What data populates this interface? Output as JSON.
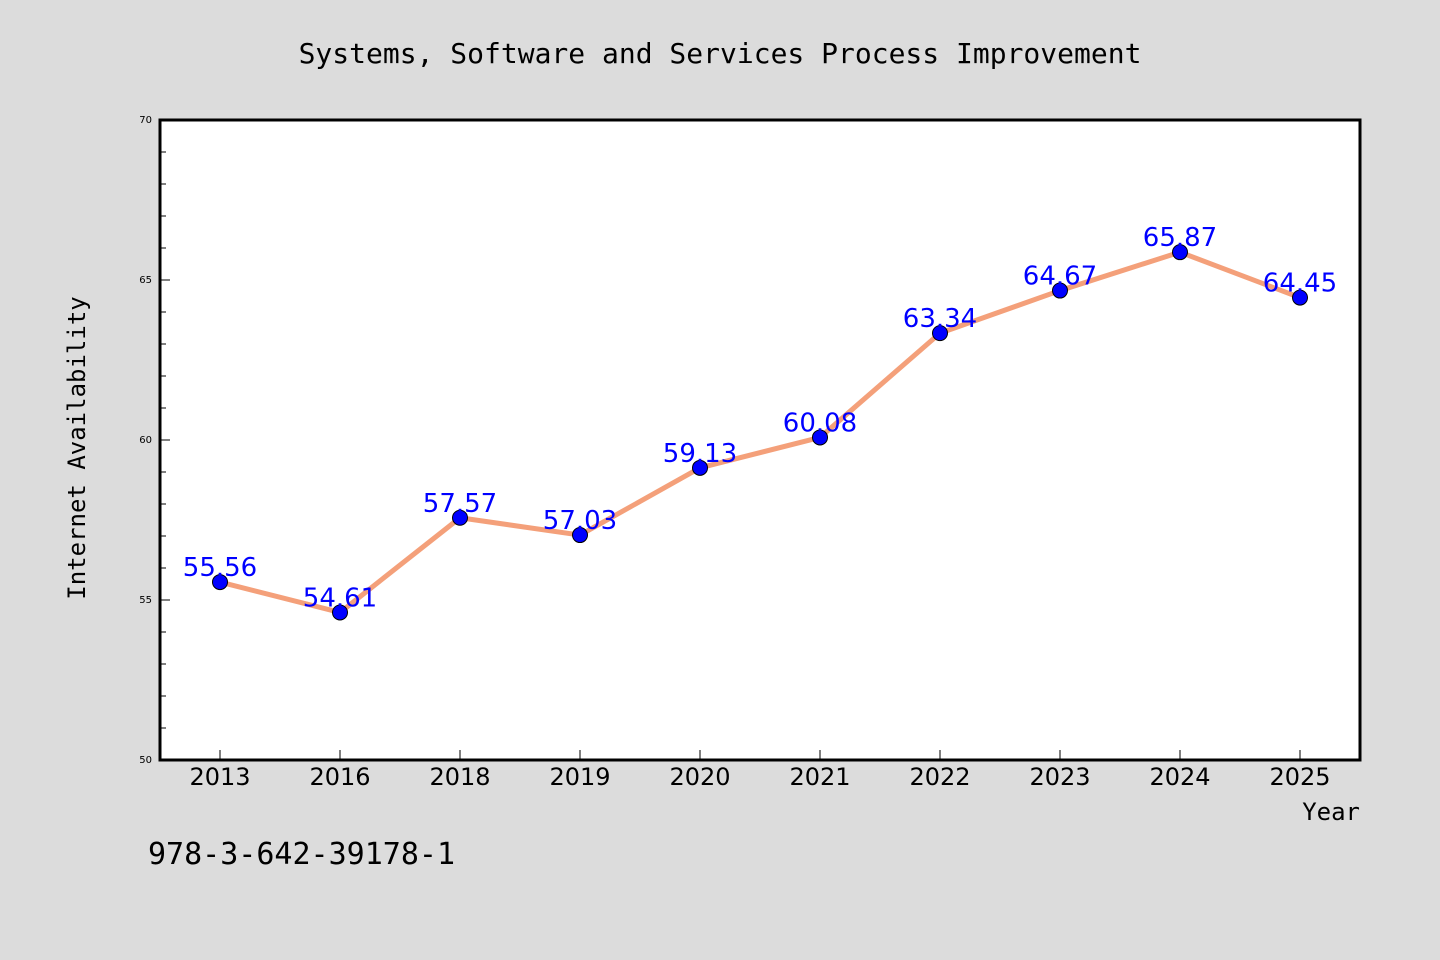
{
  "chart_data": {
    "type": "line",
    "title": "Systems, Software and Services Process Improvement",
    "xlabel": "Year",
    "ylabel": "Internet Availability",
    "categories": [
      "2013",
      "2016",
      "2018",
      "2019",
      "2020",
      "2021",
      "2022",
      "2023",
      "2024",
      "2025"
    ],
    "series": [
      {
        "values": [
          55.56,
          54.61,
          57.57,
          57.03,
          59.13,
          60.08,
          63.34,
          64.67,
          65.87,
          64.45
        ]
      }
    ],
    "value_labels": [
      "55.56",
      "54.61",
      "57.57",
      "57.03",
      "59.13",
      "60.08",
      "63.34",
      "64.67",
      "65.87",
      "64.45"
    ],
    "ylim": [
      50,
      70
    ],
    "yticks": [
      50,
      55,
      60,
      65,
      70
    ],
    "ytick_labels": [
      "50",
      "55",
      "60",
      "65",
      "70"
    ],
    "grid": false,
    "colors": {
      "background": "#dcdcdc",
      "plot_background": "#ffffff",
      "line": "#f4a07a",
      "marker": "#0000ff",
      "data_label": "#0000ff"
    }
  },
  "footnote": "978-3-642-39178-1"
}
